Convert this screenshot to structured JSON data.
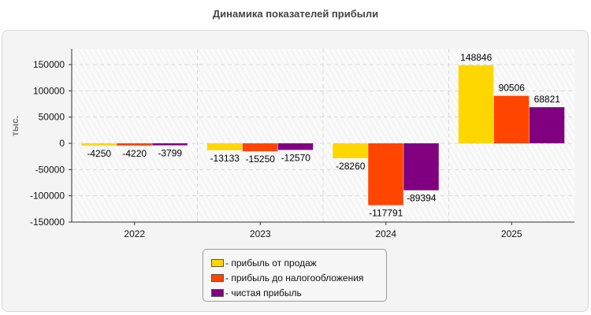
{
  "title": "Динамика показателей прибыли",
  "chart_data": {
    "type": "bar",
    "categories": [
      "2022",
      "2023",
      "2024",
      "2025"
    ],
    "series": [
      {
        "name": "- прибыль от продаж",
        "color": "#ffd700",
        "values": [
          -4250,
          -13133,
          -28260,
          148846
        ]
      },
      {
        "name": "- прибыль до налогообложения",
        "color": "#ff4500",
        "values": [
          -4220,
          -15250,
          -117791,
          90506
        ]
      },
      {
        "name": "- чистая прибыль",
        "color": "#800080",
        "values": [
          -3799,
          -12570,
          -89394,
          68821
        ]
      }
    ],
    "ylabel": "тыс.",
    "ylim": [
      -150000,
      180000
    ],
    "yticks": [
      -150000,
      -100000,
      -50000,
      0,
      50000,
      100000,
      150000
    ],
    "grid": true,
    "legend_position": "bottom"
  }
}
